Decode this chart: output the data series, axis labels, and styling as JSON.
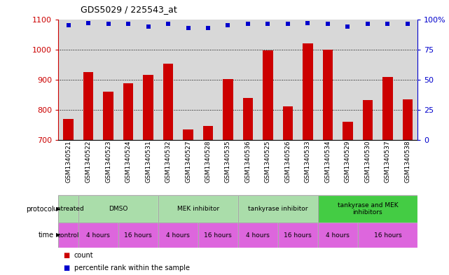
{
  "title": "GDS5029 / 225543_at",
  "samples": [
    "GSM1340521",
    "GSM1340522",
    "GSM1340523",
    "GSM1340524",
    "GSM1340531",
    "GSM1340532",
    "GSM1340527",
    "GSM1340528",
    "GSM1340535",
    "GSM1340536",
    "GSM1340525",
    "GSM1340526",
    "GSM1340533",
    "GSM1340534",
    "GSM1340529",
    "GSM1340530",
    "GSM1340537",
    "GSM1340538"
  ],
  "counts": [
    770,
    925,
    860,
    888,
    916,
    952,
    735,
    748,
    902,
    840,
    997,
    812,
    1020,
    999,
    760,
    832,
    910,
    835
  ],
  "percentiles": [
    95,
    97,
    96,
    96,
    94,
    96,
    93,
    93,
    95,
    96,
    96,
    96,
    97,
    96,
    94,
    96,
    96,
    96
  ],
  "ylim_left": [
    700,
    1100
  ],
  "ylim_right": [
    0,
    100
  ],
  "yticks_left": [
    700,
    800,
    900,
    1000,
    1100
  ],
  "yticks_right": [
    0,
    25,
    50,
    75,
    100
  ],
  "ytick_labels_right": [
    "0",
    "25",
    "50",
    "75",
    "100%"
  ],
  "bar_color": "#cc0000",
  "dot_color": "#0000cc",
  "left_axis_color": "#cc0000",
  "right_axis_color": "#0000cc",
  "bg_color": "#d8d8d8",
  "protocol_groups": [
    {
      "label": "untreated",
      "start": 0,
      "end": 1,
      "color": "#aaddaa"
    },
    {
      "label": "DMSO",
      "start": 1,
      "end": 5,
      "color": "#aaddaa"
    },
    {
      "label": "MEK inhibitor",
      "start": 5,
      "end": 9,
      "color": "#aaddaa"
    },
    {
      "label": "tankyrase inhibitor",
      "start": 9,
      "end": 13,
      "color": "#aaddaa"
    },
    {
      "label": "tankyrase and MEK\ninhibitors",
      "start": 13,
      "end": 18,
      "color": "#44cc44"
    }
  ],
  "time_groups": [
    {
      "label": "control",
      "start": 0,
      "end": 1,
      "color": "#dd66dd"
    },
    {
      "label": "4 hours",
      "start": 1,
      "end": 3,
      "color": "#dd66dd"
    },
    {
      "label": "16 hours",
      "start": 3,
      "end": 5,
      "color": "#dd66dd"
    },
    {
      "label": "4 hours",
      "start": 5,
      "end": 7,
      "color": "#dd66dd"
    },
    {
      "label": "16 hours",
      "start": 7,
      "end": 9,
      "color": "#dd66dd"
    },
    {
      "label": "4 hours",
      "start": 9,
      "end": 11,
      "color": "#dd66dd"
    },
    {
      "label": "16 hours",
      "start": 11,
      "end": 13,
      "color": "#dd66dd"
    },
    {
      "label": "4 hours",
      "start": 13,
      "end": 15,
      "color": "#dd66dd"
    },
    {
      "label": "16 hours",
      "start": 15,
      "end": 18,
      "color": "#dd66dd"
    }
  ],
  "legend": [
    {
      "label": "count",
      "color": "#cc0000"
    },
    {
      "label": "percentile rank within the sample",
      "color": "#0000cc"
    }
  ]
}
